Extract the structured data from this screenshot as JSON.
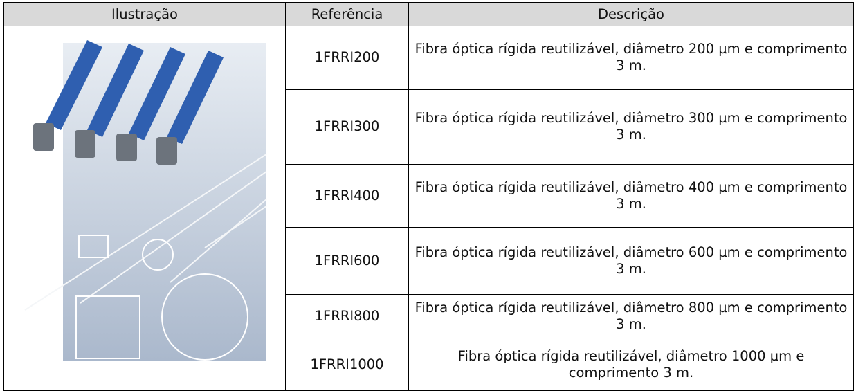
{
  "table": {
    "header": [
      "Ilustração",
      "Referência",
      "Descrição"
    ],
    "rows": [
      [
        "1FRRI200",
        "Fibra óptica rígida reutilizável, diâmetro 200 µm e comprimento 3 m."
      ],
      [
        "1FRRI300",
        "Fibra óptica rígida reutilizável, diâmetro 300 µm e comprimento 3 m."
      ],
      [
        "1FRRI400",
        "Fibra óptica rígida reutilizável, diâmetro 400 µm e comprimento 3 m."
      ],
      [
        "1FRRI600",
        "Fibra óptica rígida reutilizável, diâmetro 600 µm e comprimento 3 m."
      ],
      [
        "1FRRI800",
        "Fibra óptica rígida reutilizável, diâmetro 800 µm e comprimento 3 m."
      ],
      [
        "1FRRI1000",
        "Fibra óptica rígida reutilizável, diâmetro 1000 µm e comprimento 3 m."
      ]
    ]
  }
}
